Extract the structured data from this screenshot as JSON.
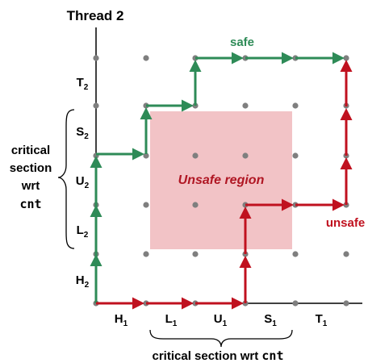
{
  "title": "Thread 2",
  "x_segments": [
    {
      "main": "H",
      "sub": "1"
    },
    {
      "main": "L",
      "sub": "1"
    },
    {
      "main": "U",
      "sub": "1"
    },
    {
      "main": "S",
      "sub": "1"
    },
    {
      "main": "T",
      "sub": "1"
    }
  ],
  "y_segments": [
    {
      "main": "H",
      "sub": "2"
    },
    {
      "main": "L",
      "sub": "2"
    },
    {
      "main": "U",
      "sub": "2"
    },
    {
      "main": "S",
      "sub": "2"
    },
    {
      "main": "T",
      "sub": "2"
    }
  ],
  "unsafe_region_label": "Unsafe region",
  "safe_label": "safe",
  "unsafe_label": "unsafe",
  "left_brace_label": {
    "line1": "critical",
    "line2": "section",
    "line3": "wrt",
    "code": "cnt"
  },
  "bottom_brace_label": {
    "text": "critical section wrt ",
    "code": "cnt"
  },
  "colors": {
    "safe": "#2e8b57",
    "unsafe": "#c0111f",
    "region": "#f2c3c6",
    "grid_dot": "#7f7f7f",
    "axis": "#000000",
    "region_text": "#b01623"
  }
}
